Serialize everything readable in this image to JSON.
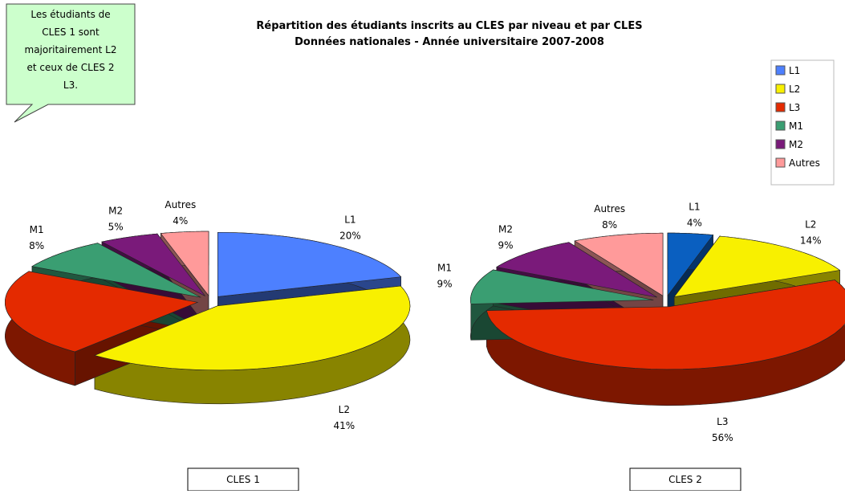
{
  "title": [
    "Répartition des étudiants inscrits au CLES par niveau et par CLES",
    "Données nationales - Année universitaire 2007-2008"
  ],
  "annotation": [
    "Les étudiants de",
    "CLES 1 sont",
    "majoritairement L2",
    "et ceux de CLES 2",
    "L3."
  ],
  "chart_data": [
    {
      "type": "pie",
      "title": "CLES 1",
      "categories": [
        "L1",
        "L2",
        "L3",
        "M1",
        "M2",
        "Autres"
      ],
      "values": [
        20,
        41,
        22,
        8,
        5,
        4
      ],
      "value_labels": [
        "20%",
        "41%",
        "22%",
        "8%",
        "5%",
        "4%"
      ],
      "colors": [
        "#4d80ff",
        "#f8f000",
        "#e42a00",
        "#3a9e72",
        "#7a1a7a",
        "#ff9a9a"
      ]
    },
    {
      "type": "pie",
      "title": "CLES 2",
      "categories": [
        "L1",
        "L2",
        "L3",
        "M1",
        "M2",
        "Autres"
      ],
      "values": [
        4,
        14,
        56,
        9,
        9,
        8
      ],
      "value_labels": [
        "4%",
        "14%",
        "56%",
        "9%",
        "9%",
        "8%"
      ],
      "colors": [
        "#0a5fc0",
        "#f8f000",
        "#e42a00",
        "#3a9e72",
        "#7a1a7a",
        "#ff9a9a"
      ]
    }
  ]
}
